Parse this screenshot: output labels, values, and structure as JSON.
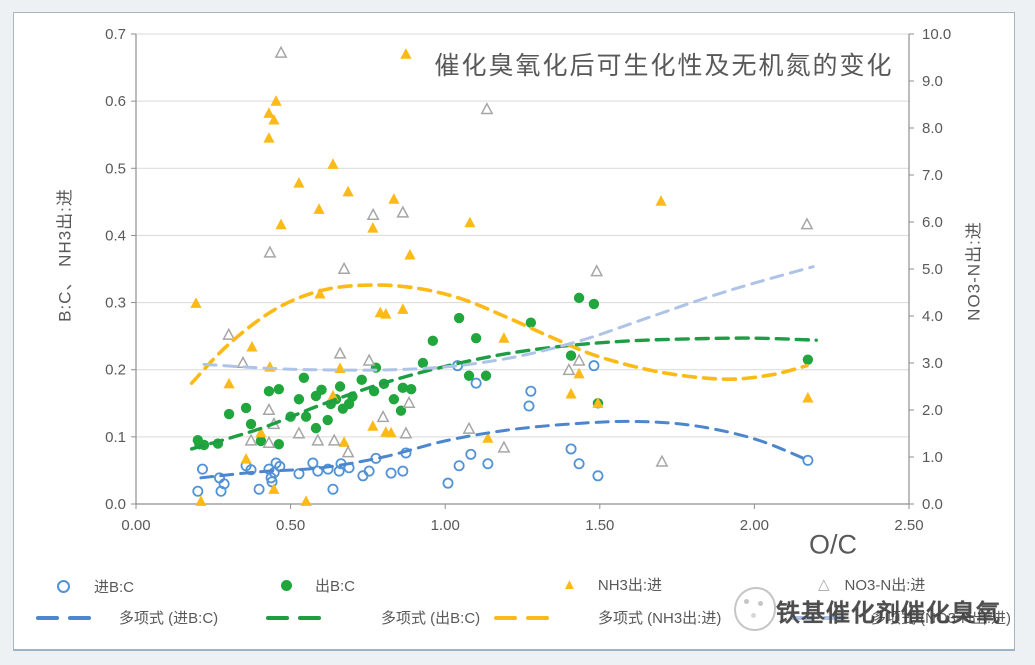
{
  "watermark": {
    "text": "铁基催化剂催化臭氧"
  },
  "chart_data": {
    "type": "scatter",
    "title": "催化臭氧化后可生化性及无机氮的变化",
    "xlabel": "O/C",
    "ylabel_left": "B:C、 NH3出:进",
    "ylabel_right": "NO3-N出:进",
    "xlim": [
      0,
      2.5
    ],
    "ylim_left": [
      0,
      0.7
    ],
    "ylim_right": [
      0,
      10
    ],
    "x_ticks": [
      "0.00",
      "0.50",
      "1.00",
      "1.50",
      "2.00",
      "2.50"
    ],
    "y_left_ticks": [
      "0.0",
      "0.1",
      "0.2",
      "0.3",
      "0.4",
      "0.5",
      "0.6",
      "0.7"
    ],
    "y_right_ticks": [
      "0.0",
      "1.0",
      "2.0",
      "3.0",
      "4.0",
      "5.0",
      "6.0",
      "7.0",
      "8.0",
      "9.0",
      "10.0"
    ],
    "grid": "horizontal",
    "legend_position": "bottom",
    "series": [
      {
        "name": "进B:C",
        "axis": "left",
        "marker": "open-circle",
        "color": "#5293D6",
        "points": [
          [
            0.2,
            0.019
          ],
          [
            0.215,
            0.052
          ],
          [
            0.27,
            0.039
          ],
          [
            0.285,
            0.03
          ],
          [
            0.275,
            0.019
          ],
          [
            0.356,
            0.057
          ],
          [
            0.372,
            0.051
          ],
          [
            0.398,
            0.022
          ],
          [
            0.43,
            0.052
          ],
          [
            0.437,
            0.039
          ],
          [
            0.44,
            0.033
          ],
          [
            0.453,
            0.061
          ],
          [
            0.465,
            0.056
          ],
          [
            0.447,
            0.047
          ],
          [
            0.527,
            0.045
          ],
          [
            0.572,
            0.061
          ],
          [
            0.588,
            0.049
          ],
          [
            0.621,
            0.052
          ],
          [
            0.637,
            0.022
          ],
          [
            0.657,
            0.049
          ],
          [
            0.663,
            0.06
          ],
          [
            0.689,
            0.054
          ],
          [
            0.734,
            0.042
          ],
          [
            0.754,
            0.049
          ],
          [
            0.776,
            0.068
          ],
          [
            0.825,
            0.046
          ],
          [
            0.863,
            0.049
          ],
          [
            0.873,
            0.076
          ],
          [
            1.009,
            0.031
          ],
          [
            1.04,
            0.206
          ],
          [
            1.045,
            0.057
          ],
          [
            1.083,
            0.074
          ],
          [
            1.1,
            0.18
          ],
          [
            1.138,
            0.06
          ],
          [
            1.271,
            0.146
          ],
          [
            1.277,
            0.168
          ],
          [
            1.407,
            0.082
          ],
          [
            1.433,
            0.06
          ],
          [
            1.481,
            0.206
          ],
          [
            1.494,
            0.042
          ],
          [
            2.173,
            0.065
          ]
        ]
      },
      {
        "name": "出B:C",
        "axis": "left",
        "marker": "filled-circle",
        "color": "#21A63D",
        "points": [
          [
            0.2,
            0.095
          ],
          [
            0.205,
            0.089
          ],
          [
            0.22,
            0.088
          ],
          [
            0.265,
            0.09
          ],
          [
            0.301,
            0.134
          ],
          [
            0.356,
            0.143
          ],
          [
            0.372,
            0.119
          ],
          [
            0.404,
            0.094
          ],
          [
            0.43,
            0.168
          ],
          [
            0.462,
            0.171
          ],
          [
            0.462,
            0.089
          ],
          [
            0.5,
            0.13
          ],
          [
            0.527,
            0.156
          ],
          [
            0.543,
            0.188
          ],
          [
            0.55,
            0.13
          ],
          [
            0.582,
            0.161
          ],
          [
            0.582,
            0.113
          ],
          [
            0.6,
            0.17
          ],
          [
            0.62,
            0.125
          ],
          [
            0.63,
            0.149
          ],
          [
            0.647,
            0.156
          ],
          [
            0.66,
            0.175
          ],
          [
            0.669,
            0.142
          ],
          [
            0.689,
            0.149
          ],
          [
            0.7,
            0.16
          ],
          [
            0.73,
            0.185
          ],
          [
            0.77,
            0.168
          ],
          [
            0.776,
            0.203
          ],
          [
            0.802,
            0.179
          ],
          [
            0.834,
            0.156
          ],
          [
            0.857,
            0.139
          ],
          [
            0.863,
            0.173
          ],
          [
            0.89,
            0.171
          ],
          [
            0.928,
            0.21
          ],
          [
            0.96,
            0.243
          ],
          [
            1.045,
            0.277
          ],
          [
            1.077,
            0.191
          ],
          [
            1.1,
            0.247
          ],
          [
            1.132,
            0.191
          ],
          [
            1.277,
            0.27
          ],
          [
            1.407,
            0.221
          ],
          [
            1.433,
            0.307
          ],
          [
            1.481,
            0.298
          ],
          [
            1.494,
            0.15
          ],
          [
            2.173,
            0.215
          ]
        ]
      },
      {
        "name": "NH3出:进",
        "axis": "left",
        "marker": "filled-triangle",
        "color": "#FBBA17",
        "points": [
          [
            0.194,
            0.299
          ],
          [
            0.21,
            0.004
          ],
          [
            0.301,
            0.179
          ],
          [
            0.356,
            0.067
          ],
          [
            0.375,
            0.234
          ],
          [
            0.404,
            0.106
          ],
          [
            0.43,
            0.582
          ],
          [
            0.43,
            0.545
          ],
          [
            0.433,
            0.204
          ],
          [
            0.446,
            0.572
          ],
          [
            0.446,
            0.022
          ],
          [
            0.453,
            0.6
          ],
          [
            0.469,
            0.416
          ],
          [
            0.527,
            0.478
          ],
          [
            0.55,
            0.004
          ],
          [
            0.592,
            0.439
          ],
          [
            0.595,
            0.313
          ],
          [
            0.637,
            0.506
          ],
          [
            0.637,
            0.161
          ],
          [
            0.66,
            0.202
          ],
          [
            0.673,
            0.092
          ],
          [
            0.686,
            0.465
          ],
          [
            0.766,
            0.411
          ],
          [
            0.766,
            0.116
          ],
          [
            0.79,
            0.285
          ],
          [
            0.808,
            0.283
          ],
          [
            0.808,
            0.107
          ],
          [
            0.825,
            0.106
          ],
          [
            0.834,
            0.454
          ],
          [
            0.863,
            0.29
          ],
          [
            0.873,
            0.67
          ],
          [
            0.886,
            0.371
          ],
          [
            1.08,
            0.419
          ],
          [
            1.138,
            0.098
          ],
          [
            1.19,
            0.247
          ],
          [
            1.407,
            0.164
          ],
          [
            1.433,
            0.194
          ],
          [
            1.494,
            0.15
          ],
          [
            1.698,
            0.451
          ],
          [
            2.173,
            0.158
          ]
        ]
      },
      {
        "name": "NO3-N出:进",
        "axis": "right",
        "marker": "open-triangle",
        "color": "#A6A6A6",
        "points": [
          [
            0.3,
            3.6
          ],
          [
            0.346,
            3.0
          ],
          [
            0.372,
            1.35
          ],
          [
            0.43,
            1.3
          ],
          [
            0.43,
            2.0
          ],
          [
            0.433,
            5.35
          ],
          [
            0.446,
            1.7
          ],
          [
            0.469,
            9.6
          ],
          [
            0.527,
            1.5
          ],
          [
            0.588,
            1.35
          ],
          [
            0.641,
            1.35
          ],
          [
            0.66,
            3.2
          ],
          [
            0.673,
            5.0
          ],
          [
            0.686,
            1.1
          ],
          [
            0.754,
            3.05
          ],
          [
            0.767,
            6.15
          ],
          [
            0.799,
            1.85
          ],
          [
            0.863,
            6.2
          ],
          [
            0.873,
            1.5
          ],
          [
            0.883,
            2.15
          ],
          [
            1.077,
            1.6
          ],
          [
            1.135,
            8.4
          ],
          [
            1.19,
            1.2
          ],
          [
            1.4,
            2.85
          ],
          [
            1.433,
            3.05
          ],
          [
            1.49,
            4.95
          ],
          [
            1.701,
            0.9
          ],
          [
            2.17,
            5.95
          ]
        ]
      }
    ],
    "trendlines": [
      {
        "name": "多项式 (进B:C)",
        "axis": "left",
        "color": "#4C86CE",
        "width": 3,
        "points": [
          [
            0.21,
            0.039
          ],
          [
            0.4,
            0.048
          ],
          [
            0.6,
            0.054
          ],
          [
            0.8,
            0.07
          ],
          [
            1.0,
            0.094
          ],
          [
            1.2,
            0.11
          ],
          [
            1.4,
            0.119
          ],
          [
            1.6,
            0.123
          ],
          [
            1.8,
            0.117
          ],
          [
            2.0,
            0.097
          ],
          [
            2.17,
            0.066
          ]
        ]
      },
      {
        "name": "多项式 (出B:C)",
        "axis": "left",
        "color": "#1E9E44",
        "width": 3.4,
        "points": [
          [
            0.18,
            0.082
          ],
          [
            0.4,
            0.112
          ],
          [
            0.6,
            0.148
          ],
          [
            0.8,
            0.18
          ],
          [
            1.0,
            0.205
          ],
          [
            1.2,
            0.224
          ],
          [
            1.4,
            0.236
          ],
          [
            1.6,
            0.243
          ],
          [
            1.8,
            0.246
          ],
          [
            2.0,
            0.247
          ],
          [
            2.2,
            0.244
          ]
        ]
      },
      {
        "name": "多项式 (NH3出:进)",
        "axis": "left",
        "color": "#FBBA17",
        "width": 3.6,
        "points": [
          [
            0.18,
            0.18
          ],
          [
            0.3,
            0.238
          ],
          [
            0.45,
            0.29
          ],
          [
            0.6,
            0.318
          ],
          [
            0.75,
            0.326
          ],
          [
            0.9,
            0.322
          ],
          [
            1.05,
            0.306
          ],
          [
            1.2,
            0.278
          ],
          [
            1.35,
            0.247
          ],
          [
            1.5,
            0.219
          ],
          [
            1.7,
            0.196
          ],
          [
            1.9,
            0.186
          ],
          [
            2.05,
            0.192
          ],
          [
            2.17,
            0.206
          ]
        ]
      },
      {
        "name": "多项式 (NO3-N出:进)",
        "axis": "right",
        "color": "#AEC3E8",
        "width": 3,
        "points": [
          [
            0.22,
            2.97
          ],
          [
            0.45,
            2.88
          ],
          [
            0.65,
            2.85
          ],
          [
            0.85,
            2.86
          ],
          [
            1.05,
            2.95
          ],
          [
            1.25,
            3.16
          ],
          [
            1.45,
            3.5
          ],
          [
            1.65,
            3.95
          ],
          [
            1.85,
            4.4
          ],
          [
            2.0,
            4.7
          ],
          [
            2.19,
            5.05
          ]
        ]
      }
    ]
  }
}
